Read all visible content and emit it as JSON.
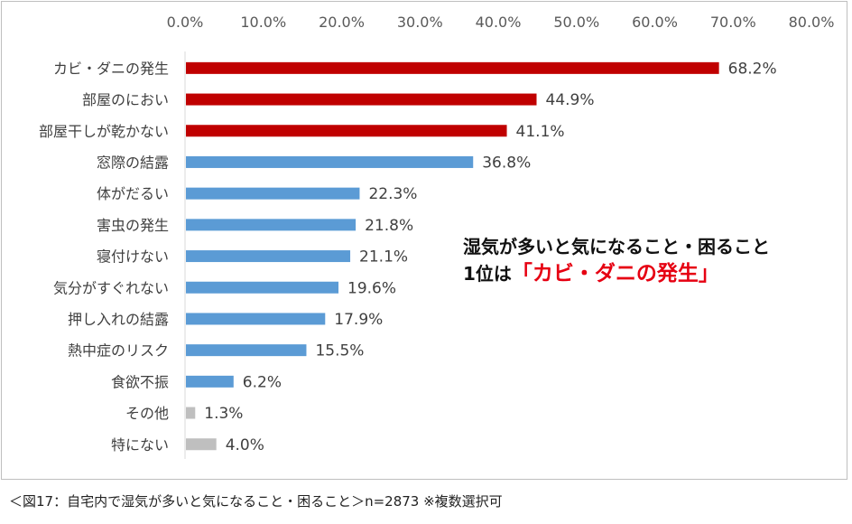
{
  "chart_data": {
    "type": "bar",
    "orientation": "horizontal",
    "x_ticks": [
      "0.0%",
      "10.0%",
      "20.0%",
      "30.0%",
      "40.0%",
      "50.0%",
      "60.0%",
      "70.0%",
      "80.0%"
    ],
    "xlim": [
      0,
      80
    ],
    "categories": [
      "カビ・ダニの発生",
      "部屋のにおい",
      "部屋干しが乾かない",
      "窓際の結露",
      "体がだるい",
      "害虫の発生",
      "寝付けない",
      "気分がすぐれない",
      "押し入れの結露",
      "熱中症のリスク",
      "食欲不振",
      "その他",
      "特にない"
    ],
    "values": [
      68.2,
      44.9,
      41.1,
      36.8,
      22.3,
      21.8,
      21.1,
      19.6,
      17.9,
      15.5,
      6.2,
      1.3,
      4.0
    ],
    "value_labels": [
      "68.2%",
      "44.9%",
      "41.1%",
      "36.8%",
      "22.3%",
      "21.8%",
      "21.1%",
      "19.6%",
      "17.9%",
      "15.5%",
      "6.2%",
      "1.3%",
      "4.0%"
    ],
    "bar_colors": [
      "#c00000",
      "#c00000",
      "#c00000",
      "#5b9bd5",
      "#5b9bd5",
      "#5b9bd5",
      "#5b9bd5",
      "#5b9bd5",
      "#5b9bd5",
      "#5b9bd5",
      "#5b9bd5",
      "#bfbfbf",
      "#bfbfbf"
    ],
    "grid": false,
    "legend": "none"
  },
  "callout": {
    "line1": "湿気が多いと気になること・困ること",
    "line2_prefix": "1位は",
    "line2_highlight": "「カビ・ダニの発生」"
  },
  "caption": "＜図17：自宅内で湿気が多いと気になること・困ること＞n=2873 ※複数選択可",
  "colors": {
    "top3": "#c00000",
    "others": "#5b9bd5",
    "misc": "#bfbfbf",
    "highlight_text": "#e60012"
  }
}
